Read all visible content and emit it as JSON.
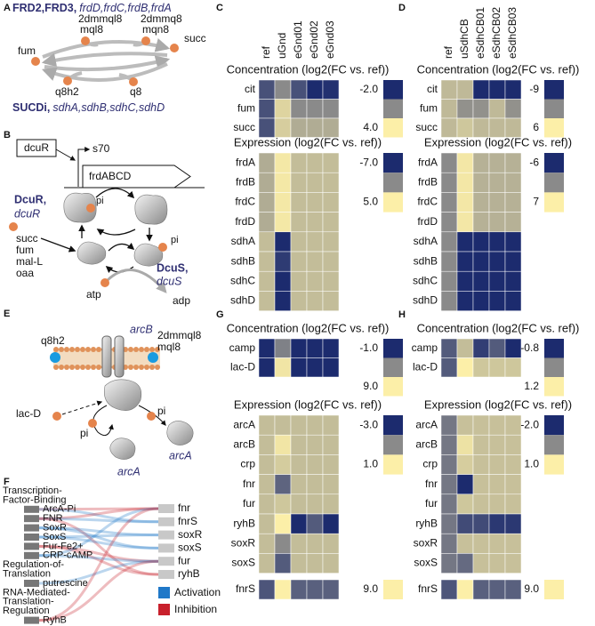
{
  "colormap": [
    "#1c2b6e",
    "#8a8a8a",
    "#fcefa8"
  ],
  "A": {
    "letter": "A",
    "title_bold": "FRD2,FRD3,",
    "title_italic": "frdD,frdC,frdB,frdA",
    "metabolites": [
      "fum",
      "2dmmql8",
      "mql8",
      "2dmmq8",
      "mqn8",
      "succ",
      "q8h2",
      "q8"
    ],
    "bottom_bold": "SUCDi,",
    "bottom_italic": "sdhA,sdhB,sdhC,sdhD"
  },
  "B": {
    "letter": "B",
    "box": "dcuR",
    "sigma": "s70",
    "gene": "frdABCD",
    "regulator_bold": "DcuR,",
    "regulator_italic": "dcuR",
    "pi": [
      "pi",
      "pi"
    ],
    "signals": [
      "succ",
      "fum",
      "mal-L",
      "oaa"
    ],
    "kinase_bold": "DcuS,",
    "kinase_italic": "dcuS",
    "atp": "atp",
    "adp": "adp"
  },
  "E": {
    "letter": "E",
    "kinase": "arcB",
    "q8h2": "q8h2",
    "quinols": [
      "2dmmql8",
      "mql8"
    ],
    "lac": "lac-D",
    "pi": [
      "pi",
      "pi"
    ],
    "regulator": [
      "arcA",
      "arcA"
    ]
  },
  "F": {
    "letter": "F",
    "groups": [
      {
        "lines": [
          "Transcription-",
          "Factor-Binding"
        ],
        "items": [
          "ArcA-Pi",
          "FNR",
          "SoxR",
          "SoxS",
          "Fur-Fe2+",
          "CRP-cAMP"
        ]
      },
      {
        "lines": [
          "Regulation-of-",
          "Translation"
        ],
        "items": [
          "putrescine"
        ]
      },
      {
        "lines": [
          "RNA-Mediated-",
          "Translation-",
          "Regulation"
        ],
        "items": [
          "RyhB"
        ]
      }
    ],
    "targets": [
      "fnr",
      "fnrS",
      "soxR",
      "soxS",
      "fur",
      "ryhB"
    ],
    "legend": [
      {
        "name": "Activation",
        "color": "#1f78c8"
      },
      {
        "name": "Inhibition",
        "color": "#c8202c"
      }
    ]
  },
  "C": {
    "letter": "C",
    "columns": [
      "ref",
      "uGnd",
      "eGnd01",
      "eGnd02",
      "eGnd03"
    ],
    "blocks": [
      {
        "title": "Concentration (log2(FC vs. ref))",
        "rows": [
          "cit",
          "fum",
          "succ"
        ],
        "values": [
          [
            -0.8,
            1,
            -0.8,
            -2,
            -1.8
          ],
          [
            -0.8,
            3.2,
            1,
            1,
            1
          ],
          [
            -0.8,
            3,
            2,
            2,
            2
          ]
        ],
        "scale": [
          {
            "value": -2,
            "label": "-2.0"
          },
          {
            "value": 4,
            "label": "4.0"
          }
        ]
      },
      {
        "title": "Expression (log2(FC vs. ref))",
        "rows": [
          "frdA",
          "frdB",
          "frdC",
          "frdD",
          "sdhA",
          "sdhB",
          "sdhC",
          "sdhD"
        ],
        "values": [
          [
            1,
            4.6,
            2,
            2,
            2
          ],
          [
            1,
            4.6,
            2,
            2,
            2
          ],
          [
            1,
            4.6,
            2,
            2,
            2
          ],
          [
            1,
            4.6,
            2,
            2,
            2
          ],
          [
            2,
            -7,
            2,
            2,
            2
          ],
          [
            2,
            -6,
            2,
            2,
            2
          ],
          [
            2,
            -7,
            2,
            2,
            2
          ],
          [
            2,
            -7,
            2,
            2,
            2
          ]
        ],
        "scale": [
          {
            "value": -7,
            "label": "-7.0"
          },
          {
            "value": 5,
            "label": "5.0"
          }
        ]
      }
    ]
  },
  "D": {
    "letter": "D",
    "columns": [
      "ref",
      "uSdhCB",
      "eSdhCB01",
      "eSdhCB02",
      "eSdhCB03"
    ],
    "blocks": [
      {
        "title": "Concentration (log2(FC vs. ref))",
        "rows": [
          "cit",
          "fum",
          "succ"
        ],
        "values": [
          [
            2,
            2,
            -9,
            -9,
            -9
          ],
          [
            2,
            -1,
            -1,
            2,
            -1
          ],
          [
            2,
            3,
            2,
            2,
            2
          ]
        ],
        "scale": [
          -9,
          6
        ]
      },
      {
        "title": "Expression (log2(FC vs. ref))",
        "rows": [
          "frdA",
          "frdB",
          "frdC",
          "frdD",
          "sdhA",
          "sdhB",
          "sdhC",
          "sdhD"
        ],
        "values": [
          [
            0.5,
            6.5,
            3,
            3,
            3
          ],
          [
            0.5,
            6.5,
            3,
            3,
            3
          ],
          [
            0.5,
            6.5,
            3,
            3,
            3
          ],
          [
            0.5,
            6.5,
            3,
            3,
            3
          ],
          [
            0.5,
            -6,
            -6,
            -6,
            -6
          ],
          [
            0.5,
            -6,
            -6,
            -6,
            -6
          ],
          [
            0.5,
            -6,
            -6,
            -6,
            -6
          ],
          [
            0.5,
            -6,
            -6,
            -6,
            -6
          ]
        ],
        "scale": [
          -6,
          7
        ]
      }
    ]
  },
  "G": {
    "letter": "G",
    "blocks": [
      {
        "title": "Concentration (log2(FC vs. ref))",
        "rows": [
          "camp",
          "lac-D"
        ],
        "values": [
          [
            -1,
            3.5,
            -1,
            -1,
            -1
          ],
          [
            -1,
            8.5,
            -1,
            -1,
            -1
          ]
        ],
        "scale": [
          {
            "value": -1,
            "label": "-1.0"
          },
          {
            "value": 9,
            "label": "9.0"
          }
        ]
      },
      {
        "title": "Expression (log2(FC vs. ref))",
        "rows": [
          "arcA",
          "arcB",
          "crp",
          "fnr",
          "fur",
          "ryhB",
          "soxR",
          "soxS"
        ],
        "values": [
          [
            0,
            0,
            0,
            0,
            0
          ],
          [
            0,
            0.8,
            0,
            0,
            0
          ],
          [
            0,
            0.3,
            0,
            0,
            0
          ],
          [
            0,
            -1.8,
            0,
            0,
            0
          ],
          [
            0,
            0.2,
            0,
            0,
            0
          ],
          [
            0,
            1,
            -3,
            -2,
            -3
          ],
          [
            0,
            -1,
            0,
            0,
            0
          ],
          [
            0,
            -2,
            0,
            0,
            0
          ]
        ],
        "scale": [
          {
            "value": -3,
            "label": "-3.0"
          },
          {
            "value": 1,
            "label": "1.0"
          }
        ]
      },
      {
        "rows": [
          "fnrS"
        ],
        "values": [
          [
            2,
            9,
            2.5,
            2.5,
            2.5
          ]
        ],
        "scale": [
          {
            "value": 9,
            "label": "9.0"
          }
        ]
      }
    ]
  },
  "H": {
    "letter": "H",
    "blocks": [
      {
        "title": "Concentration (log2(FC vs. ref))",
        "rows": [
          "camp",
          "lac-D"
        ],
        "values": [
          [
            -0.3,
            0.7,
            -0.6,
            -0.3,
            -0.8
          ],
          [
            -0.3,
            1.2,
            0.8,
            0.8,
            0.8
          ]
        ],
        "scale": [
          -0.8,
          1.2
        ]
      },
      {
        "title": "Expression (log2(FC vs. ref))",
        "rows": [
          "arcA",
          "arcB",
          "crp",
          "fnr",
          "fur",
          "ryhB",
          "soxR",
          "soxS"
        ],
        "values": [
          [
            -0.8,
            0.3,
            0.3,
            0.3,
            0.3
          ],
          [
            -0.8,
            0.8,
            0.3,
            0.3,
            0.3
          ],
          [
            -0.8,
            0.5,
            0.3,
            0.3,
            0.3
          ],
          [
            -0.8,
            -2,
            0.3,
            0.3,
            0.3
          ],
          [
            -0.8,
            0.4,
            0.3,
            0.3,
            0.3
          ],
          [
            -0.8,
            -1.5,
            -1.5,
            -1.8,
            -1.8
          ],
          [
            -0.8,
            0.3,
            0.3,
            0.3,
            0.3
          ],
          [
            -0.8,
            -1,
            0.3,
            0.3,
            0.3
          ]
        ],
        "scale": [
          {
            "value": -2,
            "label": "-2.0"
          },
          {
            "value": 1,
            "label": "1.0"
          }
        ]
      },
      {
        "rows": [
          "fnrS"
        ],
        "values": [
          [
            2,
            9,
            2.5,
            2.5,
            2.5
          ]
        ],
        "scale": [
          {
            "value": 9,
            "label": "9.0"
          }
        ]
      }
    ]
  }
}
